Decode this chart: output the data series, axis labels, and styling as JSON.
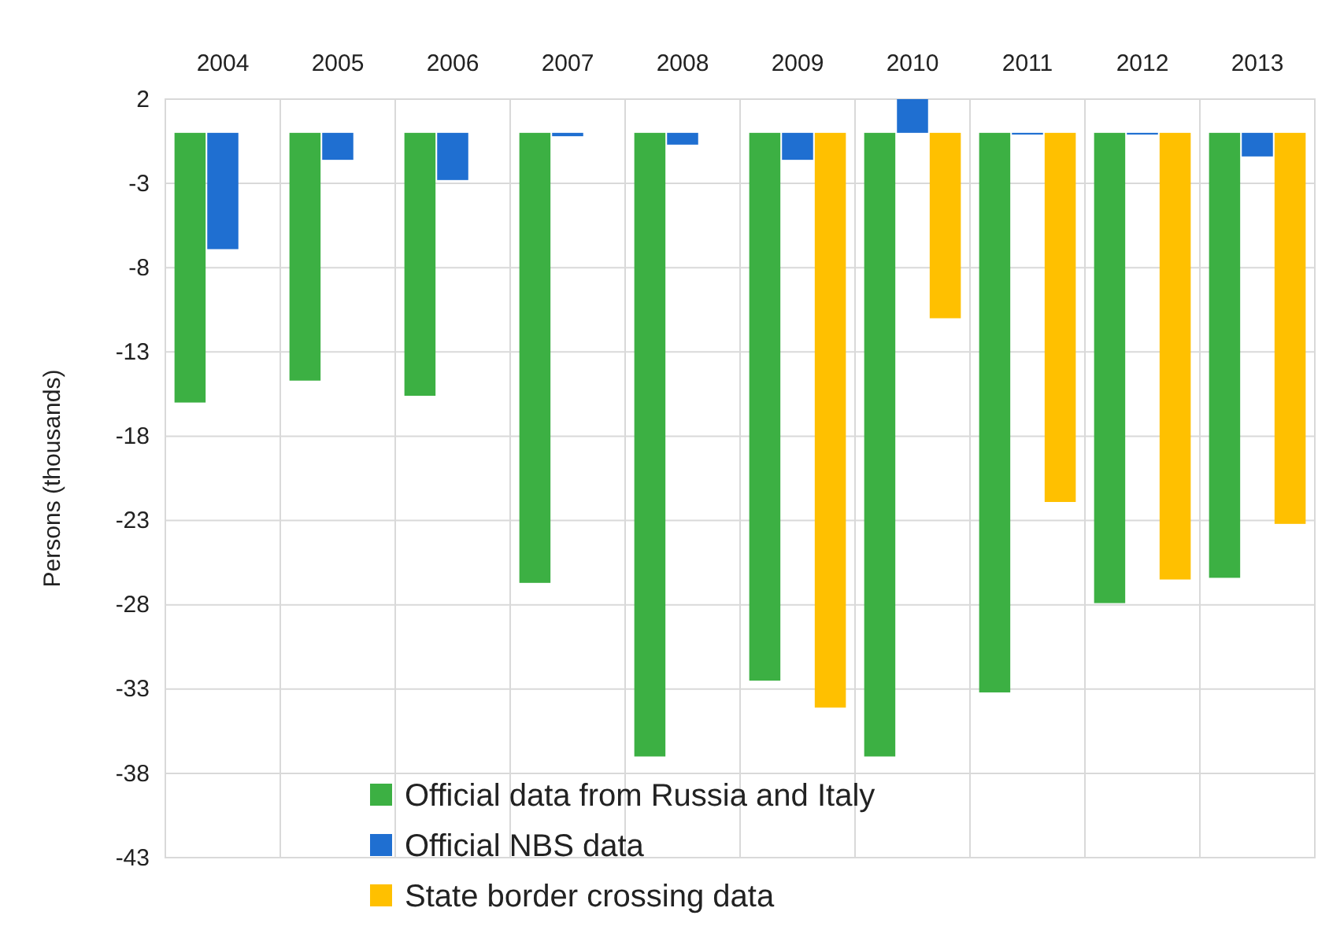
{
  "chart_data": {
    "type": "bar",
    "ylabel": "Persons (thousands)",
    "categories": [
      "2004",
      "2005",
      "2006",
      "2007",
      "2008",
      "2009",
      "2010",
      "2011",
      "2012",
      "2013"
    ],
    "series": [
      {
        "name": "Official data from Russia and Italy",
        "color": "#3cb043",
        "values": [
          -16.0,
          -14.7,
          -15.6,
          -26.7,
          -37.0,
          -32.5,
          -37.0,
          -33.2,
          -27.9,
          -26.4
        ]
      },
      {
        "name": "Official NBS data",
        "color": "#1f6fd1",
        "values": [
          -6.9,
          -1.6,
          -2.8,
          -0.2,
          -0.7,
          -1.6,
          2,
          -0.1,
          -0.1,
          -1.4
        ]
      },
      {
        "name": "State border crossing data",
        "color": "#ffc000",
        "values": [
          null,
          null,
          null,
          null,
          null,
          -34.1,
          -11.0,
          -21.9,
          -26.5,
          -23.2
        ]
      }
    ],
    "ylim": [
      -43,
      2
    ],
    "yticks": [
      2,
      -3,
      -8,
      -13,
      -18,
      -23,
      -28,
      -33,
      -38,
      -43
    ],
    "grid": true,
    "legend": "bottom"
  }
}
